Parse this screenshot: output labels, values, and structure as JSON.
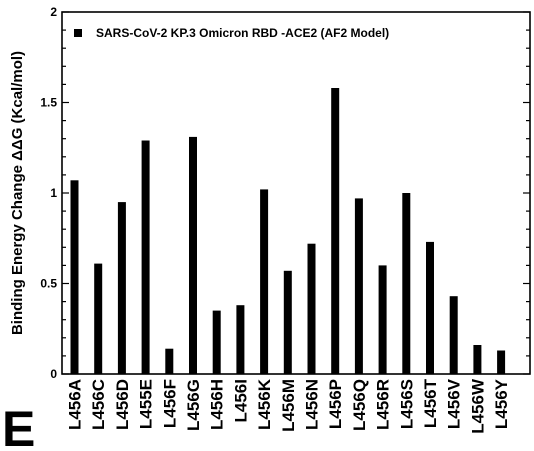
{
  "panel_label": "E",
  "chart_data": {
    "type": "bar",
    "xlabel": "",
    "ylabel": "Binding  Energy Change ΔΔG (Kcal/mol)",
    "ylim": [
      0,
      2
    ],
    "yticks": [
      "0",
      "0.5",
      "1",
      "1.5",
      "2"
    ],
    "legend": {
      "placement": "top-left",
      "entries": [
        "SARS-CoV-2 KP.3 Omicron RBD -ACE2  (AF2  Model)"
      ]
    },
    "bar_color": "#000000",
    "series": [
      {
        "name": "SARS-CoV-2 KP.3 Omicron RBD -ACE2  (AF2  Model)",
        "values": [
          1.07,
          0.61,
          0.95,
          1.29,
          0.14,
          1.31,
          0.35,
          0.38,
          1.02,
          0.57,
          0.72,
          1.58,
          0.97,
          0.6,
          1.0,
          0.73,
          0.43,
          0.16,
          0.13
        ]
      }
    ],
    "categories": [
      "L456A",
      "L456C",
      "L456D",
      "L455E",
      "L456F",
      "L456G",
      "L456H",
      "L456I",
      "L456K",
      "L456M",
      "L456N",
      "L456P",
      "L456Q",
      "L456R",
      "L456S",
      "L456T",
      "L456V",
      "L456W",
      "L456Y"
    ],
    "grid": false
  }
}
